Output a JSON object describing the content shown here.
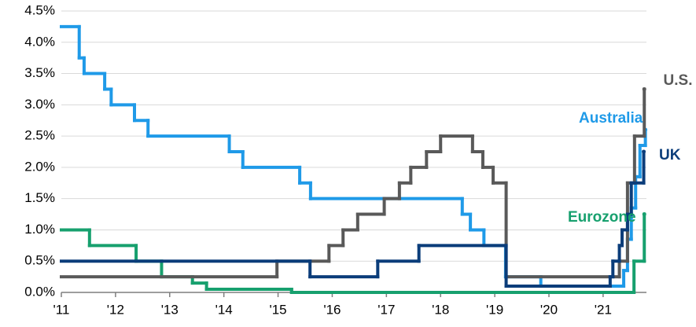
{
  "chart_data": {
    "type": "line",
    "step": "after",
    "xlim": [
      2011,
      2021.8
    ],
    "ylim": [
      0,
      4.5
    ],
    "xticks": [
      {
        "value": 2011,
        "label": "'11"
      },
      {
        "value": 2012,
        "label": "'12"
      },
      {
        "value": 2013,
        "label": "'13"
      },
      {
        "value": 2014,
        "label": "'14"
      },
      {
        "value": 2015,
        "label": "'15"
      },
      {
        "value": 2016,
        "label": "'16"
      },
      {
        "value": 2017,
        "label": "'17"
      },
      {
        "value": 2018,
        "label": "'18"
      },
      {
        "value": 2019,
        "label": "'19"
      },
      {
        "value": 2020,
        "label": "'20"
      },
      {
        "value": 2021,
        "label": "'21"
      }
    ],
    "yticks": [
      {
        "value": 0,
        "label": "0.0%"
      },
      {
        "value": 0.5,
        "label": "0.5%"
      },
      {
        "value": 1,
        "label": "1.0%"
      },
      {
        "value": 1.5,
        "label": "1.5%"
      },
      {
        "value": 2,
        "label": "2.0%"
      },
      {
        "value": 2.5,
        "label": "2.5%"
      },
      {
        "value": 3,
        "label": "3.0%"
      },
      {
        "value": 3.5,
        "label": "3.5%"
      },
      {
        "value": 4,
        "label": "4.0%"
      },
      {
        "value": 4.5,
        "label": "4.5%"
      }
    ],
    "grid": true,
    "series": [
      {
        "name": "Australia",
        "color": "#1f9ae8",
        "x": [
          2011,
          2011.33,
          2011.42,
          2011.8,
          2011.92,
          2012.35,
          2012.6,
          2014.1,
          2014.35,
          2015.4,
          2015.6,
          2018.4,
          2018.55,
          2018.8,
          2019.2,
          2019.85,
          2021.38,
          2021.45,
          2021.52,
          2021.6,
          2021.68,
          2021.78
        ],
        "values": [
          4.25,
          3.75,
          3.5,
          3.25,
          3.0,
          2.75,
          2.5,
          2.25,
          2.0,
          1.75,
          1.5,
          1.25,
          1.0,
          0.75,
          0.25,
          0.1,
          0.35,
          0.85,
          1.35,
          1.85,
          2.35,
          2.6
        ]
      },
      {
        "name": "U.S.",
        "color": "#595959",
        "x": [
          2011,
          2014.98,
          2015.94,
          2016.2,
          2016.47,
          2016.96,
          2017.24,
          2017.45,
          2017.74,
          2018.0,
          2018.59,
          2018.78,
          2018.97,
          2019.21,
          2021.3,
          2021.45,
          2021.58,
          2021.76
        ],
        "values": [
          0.25,
          0.5,
          0.75,
          1.0,
          1.25,
          1.5,
          1.75,
          2.0,
          2.25,
          2.5,
          2.25,
          2.0,
          1.75,
          0.25,
          0.5,
          1.75,
          2.5,
          3.25
        ]
      },
      {
        "name": "UK",
        "color": "#0b3d7a",
        "x": [
          2011,
          2015.59,
          2016.84,
          2017.6,
          2019.21,
          2021.13,
          2021.18,
          2021.3,
          2021.35,
          2021.45,
          2021.52,
          2021.75
        ],
        "values": [
          0.5,
          0.25,
          0.5,
          0.75,
          0.1,
          0.25,
          0.5,
          0.75,
          1.0,
          1.25,
          1.75,
          2.25
        ]
      },
      {
        "name": "Eurozone",
        "color": "#17a06e",
        "x": [
          2011,
          2011.52,
          2012.38,
          2012.85,
          2013.42,
          2013.68,
          2015.25,
          2021.57,
          2021.76
        ],
        "values": [
          1.0,
          0.75,
          0.5,
          0.25,
          0.15,
          0.05,
          0.0,
          0.5,
          1.25
        ]
      }
    ]
  }
}
